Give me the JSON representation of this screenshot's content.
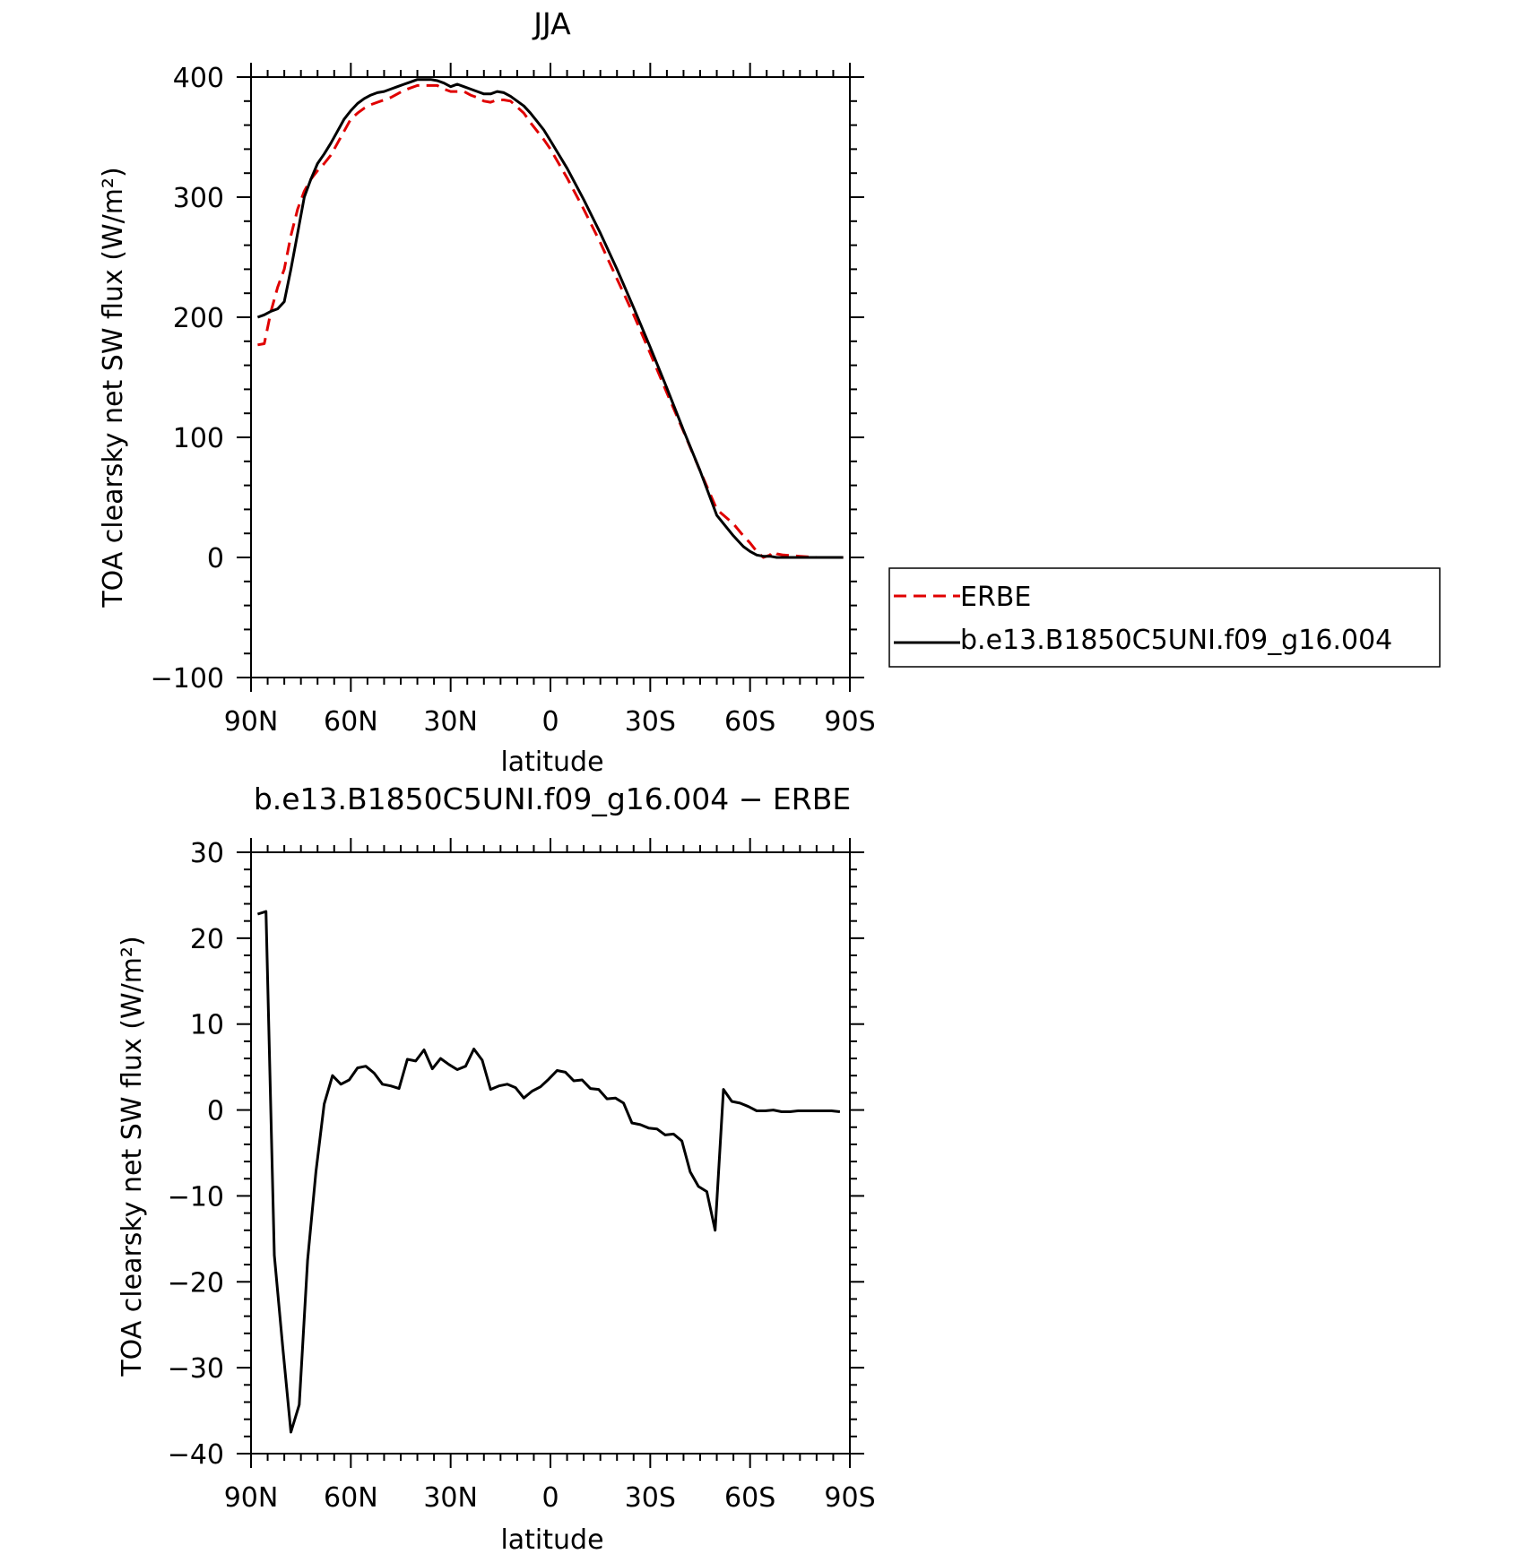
{
  "chart_data": [
    {
      "type": "line",
      "title": "JJA",
      "xlabel": "latitude",
      "ylabel": "TOA clearsky net SW flux (W/m²)",
      "xlim": [
        90,
        -90
      ],
      "ylim": [
        -100,
        400
      ],
      "x_ticks": [
        90,
        60,
        30,
        0,
        -30,
        -60,
        -90
      ],
      "x_tick_labels": [
        "90N",
        "60N",
        "30N",
        "0",
        "30S",
        "60S",
        "90S"
      ],
      "y_ticks": [
        400,
        300,
        200,
        100,
        0,
        -100
      ],
      "y_tick_labels": [
        "400",
        "300",
        "200",
        "100",
        "0",
        "−100"
      ],
      "legend": {
        "position": "right",
        "entries": [
          {
            "label": "ERBE",
            "color": "#e00000",
            "style": "dashed"
          },
          {
            "label": "b.e13.B1850C5UNI.f09_g16.004",
            "color": "#000000",
            "style": "solid"
          }
        ]
      },
      "series": [
        {
          "name": "ERBE",
          "color": "#e00000",
          "style": "dashed",
          "x": [
            88,
            86,
            84,
            82,
            80,
            78,
            76,
            74,
            72,
            70,
            68,
            66,
            64,
            62,
            60,
            58,
            56,
            54,
            52,
            50,
            48,
            46,
            44,
            42,
            40,
            38,
            36,
            34,
            32,
            30,
            28,
            26,
            24,
            22,
            20,
            18,
            16,
            14,
            12,
            10,
            8,
            6,
            4,
            2,
            0,
            -5,
            -10,
            -15,
            -20,
            -25,
            -30,
            -35,
            -40,
            -45,
            -50,
            -55,
            -58,
            -60,
            -62,
            -64,
            -66,
            -67,
            -68,
            -70,
            -75,
            -80,
            -85,
            -88
          ],
          "y": [
            177,
            178,
            205,
            225,
            240,
            268,
            290,
            305,
            315,
            322,
            328,
            335,
            345,
            355,
            365,
            370,
            374,
            377,
            379,
            381,
            383,
            386,
            389,
            391,
            393,
            393,
            393,
            393,
            390,
            388,
            388,
            388,
            385,
            383,
            380,
            379,
            381,
            381,
            380,
            375,
            370,
            362,
            355,
            348,
            340,
            316,
            290,
            262,
            232,
            202,
            170,
            137,
            105,
            72,
            40,
            28,
            18,
            12,
            5,
            0,
            2,
            5,
            3,
            2,
            1,
            0,
            0,
            0
          ],
          "points_note": ""
        },
        {
          "name": "b.e13.B1850C5UNI.f09_g16.004",
          "color": "#000000",
          "style": "solid",
          "x": [
            88,
            86,
            84,
            82,
            80,
            78,
            76,
            74,
            72,
            70,
            68,
            66,
            64,
            62,
            60,
            58,
            56,
            54,
            52,
            50,
            48,
            46,
            44,
            42,
            40,
            38,
            36,
            34,
            32,
            30,
            28,
            26,
            24,
            22,
            20,
            18,
            16,
            14,
            12,
            10,
            8,
            6,
            4,
            2,
            0,
            -5,
            -10,
            -15,
            -20,
            -25,
            -30,
            -35,
            -40,
            -45,
            -50,
            -55,
            -58,
            -60,
            -62,
            -64,
            -66,
            -68,
            -70,
            -75,
            -80,
            -85,
            -88
          ],
          "y": [
            200,
            202,
            205,
            207,
            213,
            240,
            270,
            300,
            315,
            328,
            336,
            345,
            355,
            365,
            372,
            378,
            382,
            385,
            387,
            388,
            390,
            392,
            394,
            396,
            398,
            398,
            398,
            397,
            395,
            392,
            394,
            392,
            390,
            388,
            386,
            386,
            388,
            387,
            384,
            380,
            376,
            370,
            363,
            356,
            347,
            324,
            298,
            270,
            240,
            208,
            175,
            141,
            106,
            72,
            35,
            18,
            9,
            5,
            2,
            1,
            1,
            0,
            0,
            0,
            0,
            0,
            0
          ]
        }
      ]
    },
    {
      "type": "line",
      "title": "b.e13.B1850C5UNI.f09_g16.004 − ERBE",
      "xlabel": "latitude",
      "ylabel": "TOA clearsky net SW flux (W/m²)",
      "xlim": [
        90,
        -90
      ],
      "ylim": [
        -40,
        30
      ],
      "x_ticks": [
        90,
        60,
        30,
        0,
        -30,
        -60,
        -90
      ],
      "x_tick_labels": [
        "90N",
        "60N",
        "30N",
        "0",
        "30S",
        "60S",
        "90S"
      ],
      "y_ticks": [
        30,
        20,
        10,
        0,
        -10,
        -20,
        -30,
        -40
      ],
      "y_tick_labels": [
        "30",
        "20",
        "10",
        "0",
        "−10",
        "−20",
        "−30",
        "−40"
      ],
      "series": [
        {
          "color": "#000000",
          "style": "solid",
          "x": [
            88,
            85.5,
            83,
            80.5,
            78,
            75.5,
            73,
            70.5,
            68,
            65.5,
            63,
            60.5,
            58,
            55.5,
            53,
            50.5,
            48,
            45.5,
            43,
            40.5,
            38,
            35.5,
            33,
            30.5,
            28,
            25.5,
            23,
            20.5,
            18,
            15.5,
            13,
            10.5,
            8,
            5.5,
            3,
            0.5,
            -2,
            -4.5,
            -7,
            -9.5,
            -12,
            -14.5,
            -17,
            -19.5,
            -22,
            -24.5,
            -27,
            -29.5,
            -32,
            -34.5,
            -37,
            -39.5,
            -42,
            -44.5,
            -47,
            -49.5,
            -52,
            -54.5,
            -57,
            -59.5,
            -62,
            -64.5,
            -67,
            -69.5,
            -72,
            -74.5,
            -77,
            -79.5,
            -82,
            -84.5,
            -87
          ],
          "y": [
            22.8,
            23.1,
            -16.9,
            -27.5,
            -37.5,
            -34.3,
            -17.5,
            -7.2,
            0.7,
            4.0,
            3.0,
            3.5,
            4.9,
            5.1,
            4.3,
            3.0,
            2.8,
            2.5,
            5.9,
            5.7,
            7.0,
            4.8,
            6.0,
            5.3,
            4.7,
            5.1,
            7.1,
            5.8,
            2.4,
            2.8,
            3.0,
            2.6,
            1.4,
            2.2,
            2.7,
            3.6,
            4.6,
            4.4,
            3.4,
            3.5,
            2.5,
            2.4,
            1.3,
            1.4,
            0.8,
            -1.5,
            -1.7,
            -2.1,
            -2.2,
            -2.9,
            -2.8,
            -3.6,
            -7.2,
            -8.9,
            -9.5,
            -14.0,
            2.4,
            1.0,
            0.8,
            0.4,
            -0.1,
            -0.1,
            0.0,
            -0.2,
            -0.2,
            -0.1,
            -0.1,
            -0.1,
            -0.1,
            -0.1,
            -0.2
          ]
        }
      ]
    }
  ]
}
